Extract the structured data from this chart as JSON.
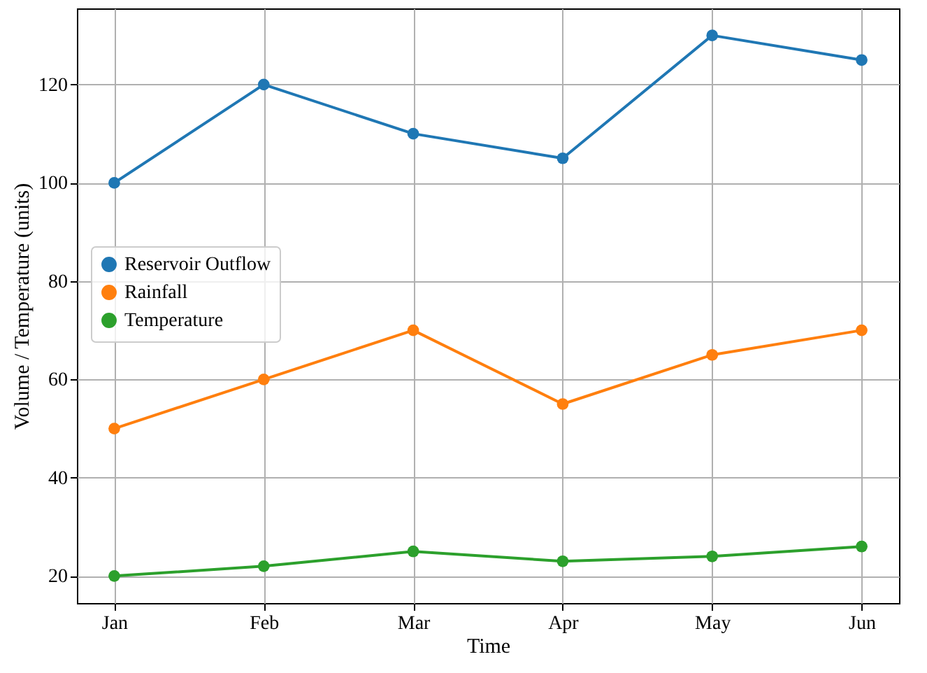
{
  "chart_data": {
    "type": "line",
    "xlabel": "Time",
    "ylabel": "Volume / Temperature (units)",
    "categories": [
      "Jan",
      "Feb",
      "Mar",
      "Apr",
      "May",
      "Jun"
    ],
    "series": [
      {
        "name": "Reservoir Outflow",
        "color": "#1f77b4",
        "values": [
          100,
          120,
          110,
          105,
          130,
          125
        ]
      },
      {
        "name": "Rainfall",
        "color": "#ff7f0e",
        "values": [
          50,
          60,
          70,
          55,
          65,
          70
        ]
      },
      {
        "name": "Temperature",
        "color": "#2ca02c",
        "values": [
          20,
          22,
          25,
          23,
          24,
          26
        ]
      }
    ],
    "ylim": [
      14.5,
      135.5
    ],
    "yticks": [
      20,
      40,
      60,
      80,
      100,
      120
    ],
    "grid": true,
    "legend": "center left",
    "marker": "circle",
    "line_style": "solid"
  }
}
